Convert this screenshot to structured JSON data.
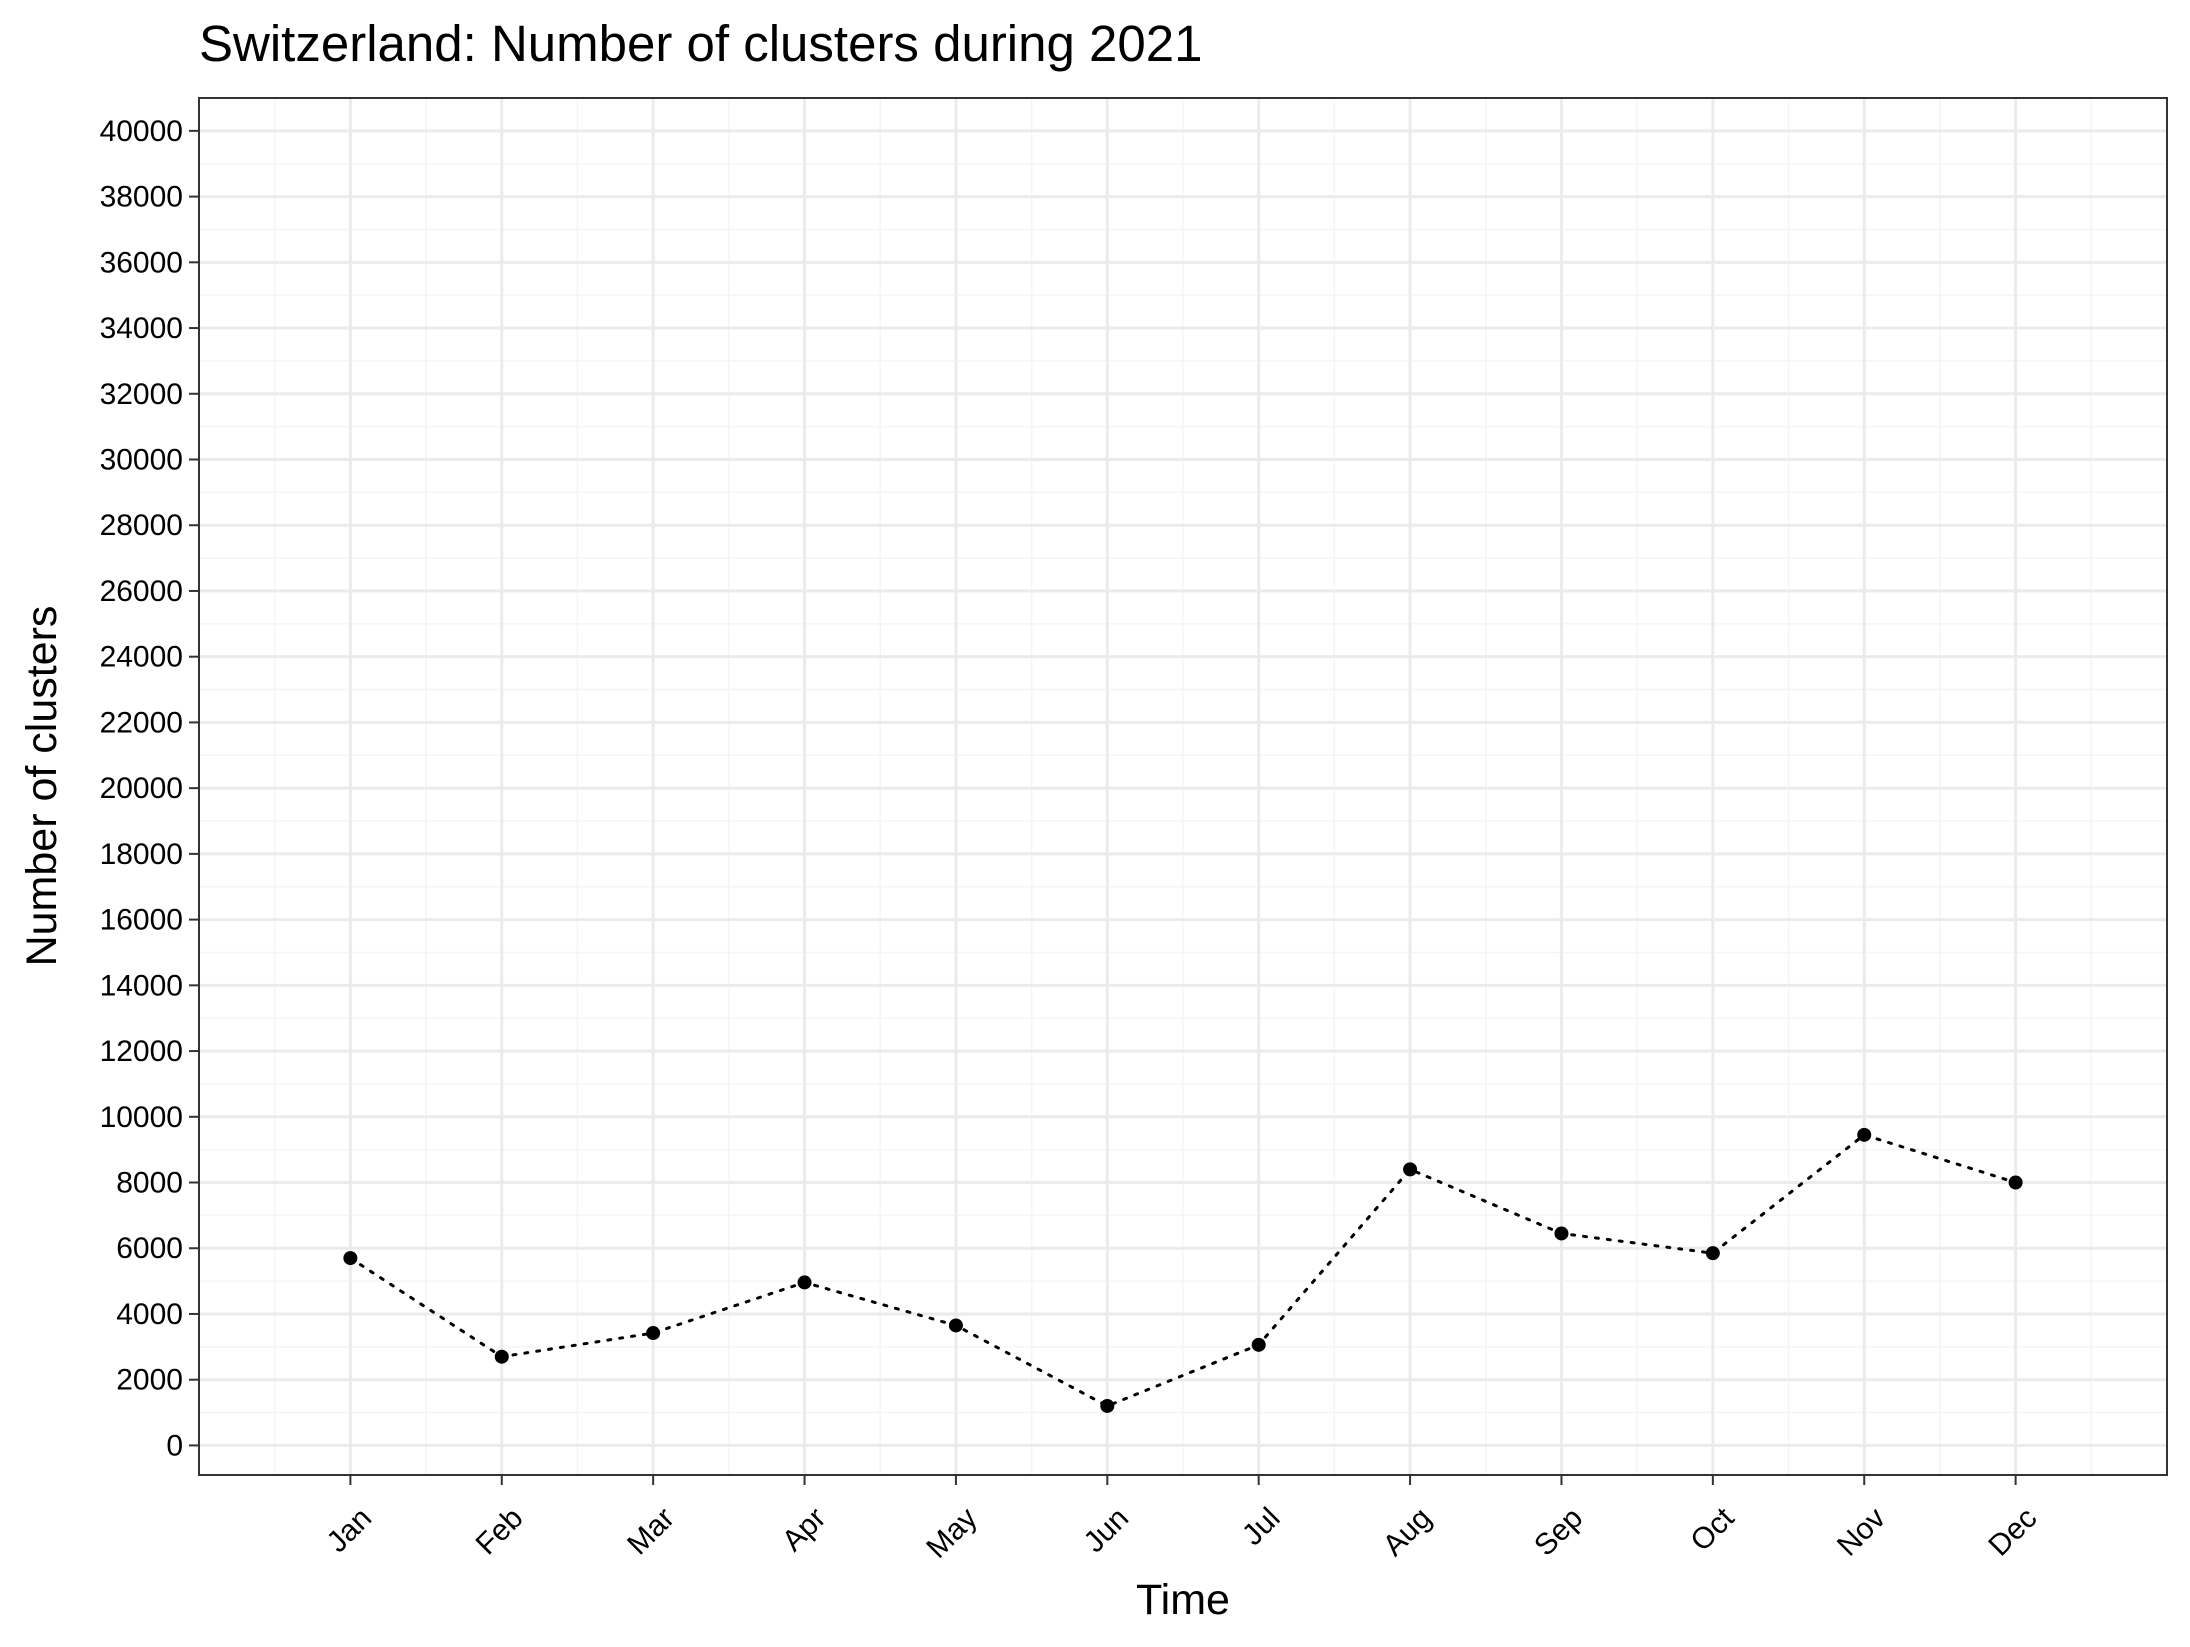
{
  "chart_data": {
    "type": "line",
    "title": "Switzerland: Number of clusters during 2021",
    "xlabel": "Time",
    "ylabel": "Number of clusters",
    "categories": [
      "Jan",
      "Feb",
      "Mar",
      "Apr",
      "May",
      "Jun",
      "Jul",
      "Aug",
      "Sep",
      "Oct",
      "Nov",
      "Dec"
    ],
    "series": [
      {
        "values": [
          5700,
          2700,
          3420,
          4960,
          3650,
          1200,
          3060,
          8400,
          6450,
          5850,
          9450,
          8000
        ]
      }
    ],
    "ylim": [
      -900,
      41000
    ],
    "yticks": [
      0,
      2000,
      4000,
      6000,
      8000,
      10000,
      12000,
      14000,
      16000,
      18000,
      20000,
      22000,
      24000,
      26000,
      28000,
      30000,
      32000,
      34000,
      36000,
      38000,
      40000
    ],
    "ytick_labels": [
      "0",
      "2000",
      "4000",
      "6000",
      "8000",
      "10000",
      "12000",
      "14000",
      "16000",
      "18000",
      "20000",
      "22000",
      "24000",
      "26000",
      "28000",
      "30000",
      "32000",
      "34000",
      "36000",
      "38000",
      "40000"
    ],
    "line_style": "dotted",
    "grid": true,
    "legend": "none",
    "colors": {
      "line": "#000000",
      "points": "#000000",
      "grid_major": "#ebebeb",
      "grid_minor": "#f5f5f5",
      "panel_border": "#333333",
      "background": "#ffffff"
    }
  }
}
